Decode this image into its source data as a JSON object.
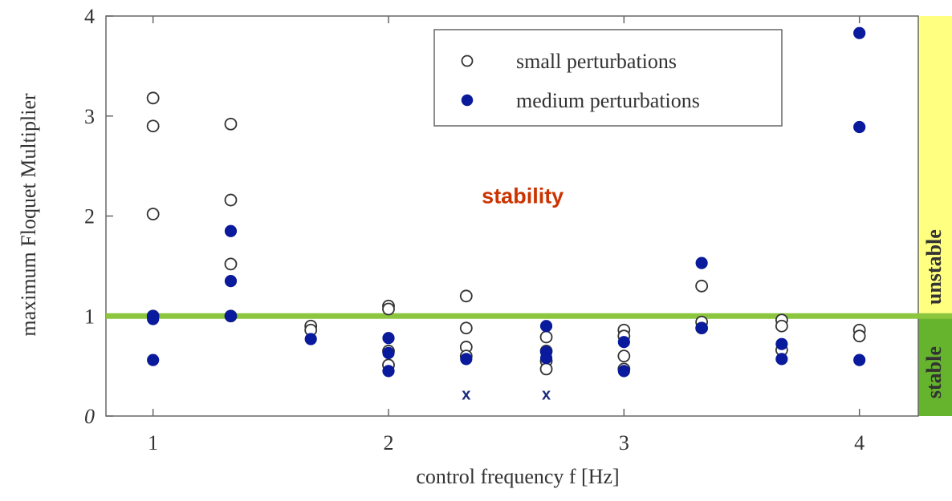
{
  "chart_data": {
    "type": "scatter",
    "xlabel": "control frequency f [Hz]",
    "ylabel": "maximum Floquet Multiplier",
    "xlim": [
      0.8,
      4.25
    ],
    "ylim": [
      0,
      4
    ],
    "x_ticks": [
      "1",
      "2",
      "3",
      "4"
    ],
    "y_ticks": [
      "0",
      "1",
      "2",
      "3",
      "4"
    ],
    "threshold": {
      "y": 1,
      "color": "#8cc63f"
    },
    "zones": [
      {
        "label": "unstable",
        "from": 1,
        "to": 4,
        "color": "#ffff80"
      },
      {
        "label": "stable",
        "from": 0,
        "to": 1,
        "color": "#66b32e"
      }
    ],
    "annotation": {
      "text": "stability",
      "x": 2.57,
      "y": 2.13,
      "color": "#cc3300"
    },
    "legend": {
      "position": "top-center"
    },
    "series": [
      {
        "name": "small perturbations",
        "marker": "open-circle",
        "color": "#333333",
        "points": [
          [
            1,
            3.18
          ],
          [
            1,
            2.9
          ],
          [
            1,
            2.02
          ],
          [
            1,
            1.0
          ],
          [
            1.33,
            2.92
          ],
          [
            1.33,
            2.16
          ],
          [
            1.33,
            1.52
          ],
          [
            1.33,
            1.0
          ],
          [
            1.67,
            0.9
          ],
          [
            1.67,
            0.86
          ],
          [
            2,
            1.1
          ],
          [
            2,
            1.07
          ],
          [
            2,
            0.65
          ],
          [
            2,
            0.51
          ],
          [
            2.33,
            1.2
          ],
          [
            2.33,
            0.88
          ],
          [
            2.33,
            0.69
          ],
          [
            2.33,
            0.6
          ],
          [
            2.67,
            0.79
          ],
          [
            2.67,
            0.65
          ],
          [
            2.67,
            0.55
          ],
          [
            2.67,
            0.47
          ],
          [
            3,
            0.86
          ],
          [
            3,
            0.8
          ],
          [
            3,
            0.6
          ],
          [
            3,
            0.47
          ],
          [
            3.33,
            1.3
          ],
          [
            3.33,
            0.94
          ],
          [
            3.33,
            0.88
          ],
          [
            3.67,
            0.96
          ],
          [
            3.67,
            0.9
          ],
          [
            3.67,
            0.66
          ],
          [
            4,
            0.86
          ],
          [
            4,
            0.8
          ]
        ]
      },
      {
        "name": "medium perturbations",
        "marker": "filled-circle",
        "color": "#0a1a9c",
        "points": [
          [
            1,
            1.0
          ],
          [
            1,
            0.97
          ],
          [
            1,
            0.56
          ],
          [
            1.33,
            1.85
          ],
          [
            1.33,
            1.35
          ],
          [
            1.33,
            1.0
          ],
          [
            1.67,
            0.77
          ],
          [
            2,
            0.78
          ],
          [
            2,
            0.63
          ],
          [
            2,
            0.45
          ],
          [
            2.33,
            0.57
          ],
          [
            2.67,
            0.9
          ],
          [
            2.67,
            0.64
          ],
          [
            2.67,
            0.58
          ],
          [
            3,
            0.74
          ],
          [
            3,
            0.45
          ],
          [
            3.33,
            1.53
          ],
          [
            3.33,
            0.88
          ],
          [
            3.67,
            0.72
          ],
          [
            3.67,
            0.57
          ],
          [
            4,
            3.83
          ],
          [
            4,
            2.89
          ],
          [
            4,
            0.56
          ]
        ]
      }
    ],
    "crosses": {
      "text": "x",
      "color": "#1a2a7a",
      "points": [
        [
          2.33,
          0.22
        ],
        [
          2.67,
          0.22
        ]
      ]
    }
  }
}
